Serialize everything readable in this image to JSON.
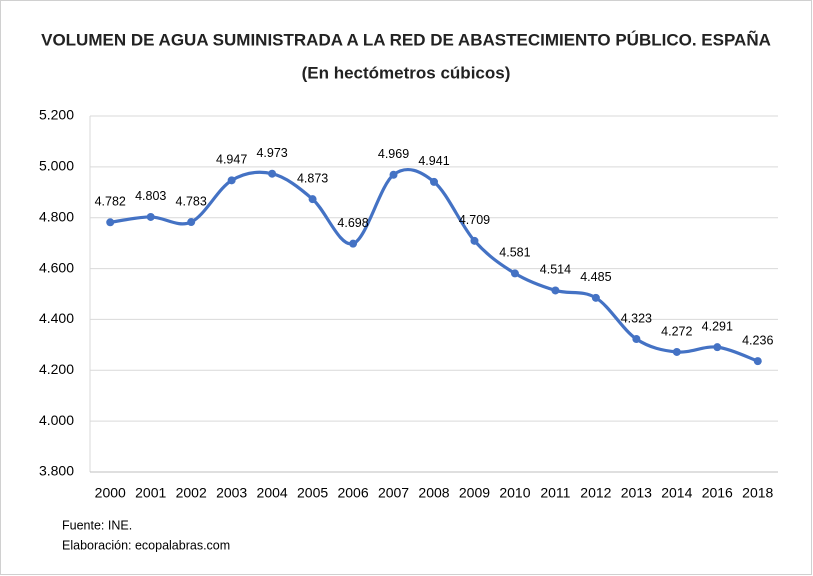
{
  "chart_data": {
    "type": "line",
    "title": "VOLUMEN DE AGUA SUMINISTRADA A LA RED DE ABASTECIMIENTO PÚBLICO. ESPAÑA",
    "subtitle": "(En hectómetros cúbicos)",
    "categories": [
      "2000",
      "2001",
      "2002",
      "2003",
      "2004",
      "2005",
      "2006",
      "2007",
      "2008",
      "2009",
      "2010",
      "2011",
      "2012",
      "2013",
      "2014",
      "2016",
      "2018"
    ],
    "values": [
      4782,
      4803,
      4783,
      4947,
      4973,
      4873,
      4698,
      4969,
      4941,
      4709,
      4581,
      4514,
      4485,
      4323,
      4272,
      4291,
      4236
    ],
    "value_labels": [
      "4.782",
      "4.803",
      "4.783",
      "4.947",
      "4.973",
      "4.873",
      "4.698",
      "4.969",
      "4.941",
      "4.709",
      "4.581",
      "4.514",
      "4.485",
      "4.323",
      "4.272",
      "4.291",
      "4.236"
    ],
    "color": "#4472c4",
    "ylim": [
      3800,
      5200
    ],
    "yticks": [
      {
        "value": 3800,
        "label": "3.800"
      },
      {
        "value": 4000,
        "label": "4.000"
      },
      {
        "value": 4200,
        "label": "4.200"
      },
      {
        "value": 4400,
        "label": "4.400"
      },
      {
        "value": 4600,
        "label": "4.600"
      },
      {
        "value": 4800,
        "label": "4.800"
      },
      {
        "value": 5000,
        "label": "5.000"
      },
      {
        "value": 5200,
        "label": "5.200"
      }
    ],
    "grid": true,
    "smooth": true,
    "notes": [
      "Fuente: INE.",
      "Elaboración: ecopalabras.com"
    ]
  }
}
